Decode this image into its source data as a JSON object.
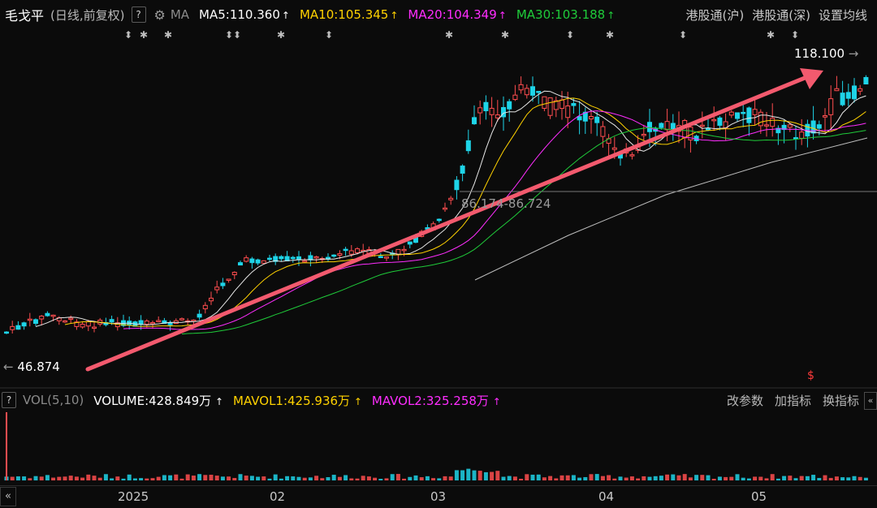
{
  "header": {
    "stock_name": "毛戈平",
    "adjust_mode": "(日线,前复权)",
    "help_label": "?",
    "ma_label": "MA",
    "ma_items": [
      {
        "text": "MA5:110.360",
        "arrow": "↑",
        "color": "#ffffff"
      },
      {
        "text": "MA10:105.345",
        "arrow": "↑",
        "color": "#ffd200"
      },
      {
        "text": "MA20:104.349",
        "arrow": "↑",
        "color": "#ff2dff"
      },
      {
        "text": "MA30:103.188",
        "arrow": "↑",
        "color": "#1fcc3a"
      }
    ],
    "links": [
      "港股通(沪)",
      "港股通(深)",
      "设置均线"
    ]
  },
  "price_labels": {
    "high": "118.100",
    "low": "46.874",
    "range": "86.174-86.724"
  },
  "volume_bar": {
    "help_label": "?",
    "title": "VOL(5,10)",
    "volume": "VOLUME:428.849万",
    "volume_arrow": "↑",
    "mavol1": "MAVOL1:425.936万",
    "mavol1_arrow": "↑",
    "mavol2": "MAVOL2:325.258万",
    "mavol2_arrow": "↑",
    "actions": [
      "改参数",
      "加指标",
      "换指标"
    ],
    "collapse_label": "«"
  },
  "x_axis": {
    "labels": [
      "2025",
      "02",
      "03",
      "04",
      "05"
    ],
    "scroll_left_label": "«"
  },
  "colors": {
    "up": "#ff4d4f",
    "down": "#1ed4e8",
    "ma5": "#e8e8e8",
    "ma10": "#ffd200",
    "ma20": "#ff2dff",
    "ma30": "#1fcc3a",
    "arrow": "#f35a6e"
  }
}
